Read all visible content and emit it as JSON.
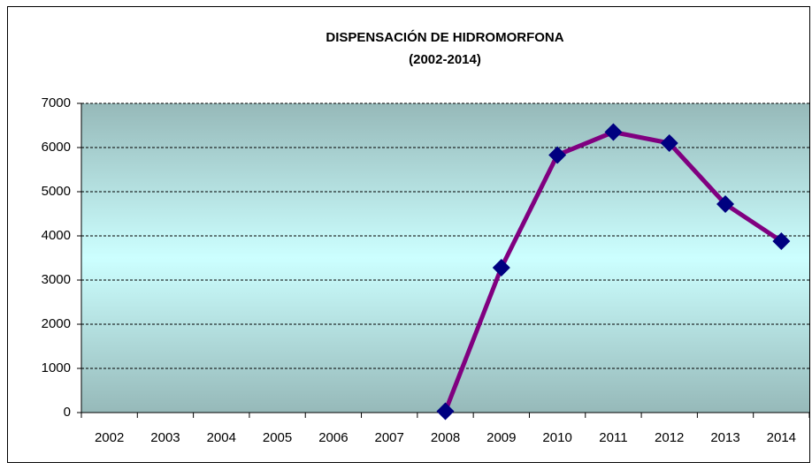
{
  "chart_data": {
    "type": "line",
    "title": "DISPENSACIÓN  DE HIDROMORFONA",
    "subtitle": "(2002-2014)",
    "categories": [
      "2002",
      "2003",
      "2004",
      "2005",
      "2006",
      "2007",
      "2008",
      "2009",
      "2010",
      "2011",
      "2012",
      "2013",
      "2014"
    ],
    "values": [
      null,
      null,
      null,
      null,
      null,
      null,
      30,
      3280,
      5830,
      6350,
      6100,
      4720,
      3880
    ],
    "color": "#800080",
    "marker_color": "#000080",
    "ylim": [
      0,
      7000
    ],
    "yticks": [
      0,
      1000,
      2000,
      3000,
      4000,
      5000,
      6000,
      7000
    ],
    "grid": true
  }
}
